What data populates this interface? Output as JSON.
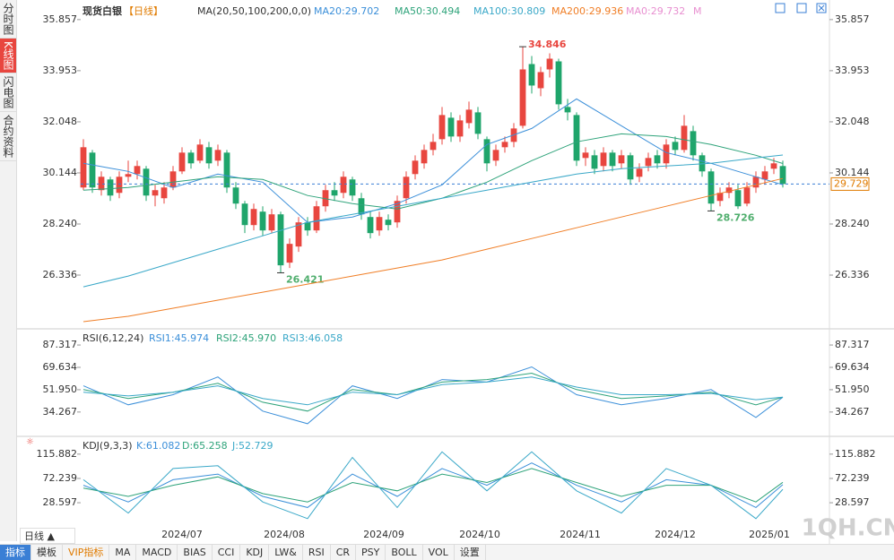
{
  "sidebar": [
    "分时图",
    "K线图",
    "闪电图",
    "合约资料"
  ],
  "toolbar": [
    "指标",
    "模板",
    "VIP指标",
    "MA",
    "MACD",
    "BIAS",
    "CCI",
    "KDJ",
    "LW&",
    "RSI",
    "CR",
    "PSY",
    "BOLL",
    "VOL",
    "设置"
  ],
  "period_button": "日线 ▲",
  "watermark": "1QH.CN",
  "chart_data": [
    {
      "type": "candlestick",
      "title": "现货白银",
      "period": "【日线】",
      "indicator": "MA(20,50,100,200,0,0)",
      "extra_labels": [
        "MA0:29.732",
        "M"
      ],
      "up_color": "#e8463f",
      "down_color": "#1fa56b",
      "ohlc": [
        [
          29.6,
          31.4,
          29.5,
          31.1
        ],
        [
          30.9,
          31.0,
          29.4,
          29.6
        ],
        [
          29.5,
          30.2,
          29.3,
          30.0
        ],
        [
          29.9,
          30.0,
          29.1,
          29.3
        ],
        [
          29.4,
          30.2,
          29.2,
          30.0
        ],
        [
          30.0,
          30.6,
          29.8,
          30.1
        ],
        [
          30.1,
          30.6,
          29.9,
          30.4
        ],
        [
          30.3,
          30.4,
          29.1,
          29.3
        ],
        [
          29.3,
          29.7,
          28.9,
          29.5
        ],
        [
          29.2,
          29.8,
          29.0,
          29.6
        ],
        [
          29.6,
          30.4,
          29.5,
          30.2
        ],
        [
          30.2,
          31.1,
          30.1,
          30.9
        ],
        [
          30.9,
          31.0,
          30.3,
          30.5
        ],
        [
          30.6,
          31.4,
          30.5,
          31.2
        ],
        [
          31.1,
          31.3,
          30.3,
          30.5
        ],
        [
          30.6,
          31.2,
          30.4,
          31.0
        ],
        [
          30.9,
          31.0,
          29.4,
          29.6
        ],
        [
          29.6,
          29.8,
          28.8,
          29.0
        ],
        [
          29.0,
          29.1,
          27.9,
          28.2
        ],
        [
          28.2,
          29.0,
          28.0,
          28.8
        ],
        [
          28.7,
          28.9,
          27.8,
          28.0
        ],
        [
          28.0,
          28.8,
          27.9,
          28.6
        ],
        [
          28.6,
          28.7,
          26.421,
          26.7
        ],
        [
          26.8,
          27.7,
          26.6,
          27.5
        ],
        [
          27.4,
          28.5,
          27.2,
          28.3
        ],
        [
          28.3,
          28.5,
          27.8,
          28.0
        ],
        [
          28.0,
          29.1,
          27.9,
          28.9
        ],
        [
          28.9,
          29.7,
          28.7,
          29.5
        ],
        [
          29.5,
          29.8,
          29.1,
          29.3
        ],
        [
          29.4,
          30.2,
          29.2,
          30.0
        ],
        [
          29.9,
          30.0,
          29.1,
          29.3
        ],
        [
          29.2,
          29.4,
          28.4,
          28.6
        ],
        [
          28.5,
          28.7,
          27.7,
          27.9
        ],
        [
          28.0,
          28.7,
          27.8,
          28.5
        ],
        [
          28.4,
          28.6,
          28.0,
          28.2
        ],
        [
          28.3,
          29.3,
          28.1,
          29.1
        ],
        [
          29.2,
          30.2,
          29.0,
          30.0
        ],
        [
          30.1,
          30.8,
          29.9,
          30.6
        ],
        [
          30.5,
          31.2,
          30.3,
          31.0
        ],
        [
          31.0,
          31.6,
          30.8,
          31.3
        ],
        [
          31.4,
          32.6,
          31.2,
          32.3
        ],
        [
          32.2,
          32.4,
          31.3,
          31.5
        ],
        [
          31.5,
          32.3,
          31.3,
          32.1
        ],
        [
          32.0,
          32.8,
          31.8,
          32.5
        ],
        [
          32.4,
          32.6,
          31.4,
          31.6
        ],
        [
          31.4,
          31.5,
          30.2,
          30.5
        ],
        [
          30.6,
          31.2,
          30.4,
          31.0
        ],
        [
          31.1,
          31.5,
          30.9,
          31.3
        ],
        [
          31.3,
          32.0,
          31.1,
          31.8
        ],
        [
          31.9,
          34.846,
          31.8,
          34.0
        ],
        [
          34.2,
          34.5,
          33.1,
          33.4
        ],
        [
          33.3,
          34.1,
          33.0,
          33.9
        ],
        [
          34.0,
          34.6,
          33.7,
          34.4
        ],
        [
          34.3,
          34.4,
          32.5,
          32.7
        ],
        [
          32.6,
          32.9,
          32.1,
          32.4
        ],
        [
          32.3,
          32.4,
          30.4,
          30.6
        ],
        [
          30.7,
          31.1,
          30.4,
          30.9
        ],
        [
          30.8,
          31.0,
          30.1,
          30.3
        ],
        [
          30.4,
          31.1,
          30.2,
          30.9
        ],
        [
          30.9,
          31.0,
          30.2,
          30.4
        ],
        [
          30.5,
          31.0,
          30.3,
          30.8
        ],
        [
          30.8,
          30.9,
          29.7,
          29.9
        ],
        [
          30.0,
          30.5,
          29.8,
          30.3
        ],
        [
          30.4,
          30.9,
          30.2,
          30.7
        ],
        [
          30.8,
          31.0,
          30.3,
          30.5
        ],
        [
          30.5,
          31.4,
          30.3,
          31.2
        ],
        [
          31.3,
          31.5,
          30.8,
          31.0
        ],
        [
          31.0,
          32.3,
          30.9,
          31.9
        ],
        [
          31.7,
          31.9,
          30.6,
          30.8
        ],
        [
          30.8,
          30.9,
          30.0,
          30.2
        ],
        [
          30.2,
          30.3,
          28.726,
          29.0
        ],
        [
          29.1,
          29.6,
          28.9,
          29.4
        ],
        [
          29.4,
          29.8,
          29.2,
          29.6
        ],
        [
          29.5,
          29.7,
          28.8,
          28.9
        ],
        [
          29.0,
          29.8,
          28.9,
          29.6
        ],
        [
          29.6,
          30.2,
          29.4,
          30.0
        ],
        [
          29.9,
          30.4,
          29.7,
          30.2
        ],
        [
          30.3,
          30.7,
          30.1,
          30.5
        ],
        [
          30.4,
          30.6,
          29.6,
          29.73
        ]
      ],
      "line_x": [
        0,
        5,
        10,
        15,
        20,
        25,
        30,
        35,
        40,
        45,
        50,
        55,
        60,
        65,
        70,
        75,
        78
      ],
      "series": [
        {
          "name": "MA20",
          "label": "MA20:29.702",
          "color": "#3b8fd9",
          "values": [
            30.5,
            30.2,
            29.6,
            30.1,
            29.8,
            28.3,
            28.5,
            29.0,
            29.7,
            31.2,
            31.8,
            32.9,
            31.9,
            30.9,
            30.5,
            30.0,
            29.702
          ]
        },
        {
          "name": "MA50",
          "label": "MA50:30.494",
          "color": "#2ea37a",
          "values": [
            29.5,
            29.6,
            29.8,
            30.0,
            29.9,
            29.3,
            29.0,
            28.8,
            29.2,
            29.8,
            30.6,
            31.3,
            31.6,
            31.5,
            31.2,
            30.8,
            30.494
          ]
        },
        {
          "name": "MA100",
          "label": "MA100:30.809",
          "color": "#3aa8c8",
          "values": [
            25.9,
            26.3,
            26.8,
            27.3,
            27.8,
            28.3,
            28.6,
            28.9,
            29.2,
            29.5,
            29.8,
            30.1,
            30.3,
            30.4,
            30.5,
            30.7,
            30.809
          ]
        },
        {
          "name": "MA200",
          "label": "MA200:29.936",
          "color": "#f07e26",
          "values": [
            24.6,
            24.8,
            25.1,
            25.4,
            25.7,
            26.0,
            26.3,
            26.6,
            26.9,
            27.3,
            27.7,
            28.1,
            28.5,
            28.9,
            29.3,
            29.7,
            29.936
          ]
        }
      ],
      "last_price": 29.729,
      "annotations": [
        {
          "value": 34.846,
          "at": 49,
          "color": "#e8463f"
        },
        {
          "value": 26.421,
          "at": 22,
          "color": "#4fae6d"
        },
        {
          "value": 28.726,
          "at": 70,
          "color": "#4fae6d"
        }
      ],
      "ylim": [
        24.4,
        36.42
      ],
      "yticks": [
        26.336,
        {
          "value": 28.24,
          "label": "28.240"
        },
        30.144,
        32.048,
        33.953,
        35.857
      ],
      "xlim": [
        0,
        78
      ],
      "xticks": [
        {
          "value": 11,
          "label": "2024/07"
        },
        {
          "value": 22.4,
          "label": "2024/08"
        },
        {
          "value": 33.5,
          "label": "2024/09"
        },
        {
          "value": 44.2,
          "label": "2024/10"
        },
        {
          "value": 55.4,
          "label": "2024/11"
        },
        {
          "value": 66,
          "label": "2024/12"
        },
        {
          "value": 76.5,
          "label": "2025/01"
        }
      ]
    },
    {
      "type": "line",
      "title": "RSI(6,12,24)",
      "line_x": [
        0,
        5,
        10,
        15,
        20,
        25,
        30,
        35,
        40,
        45,
        50,
        55,
        60,
        65,
        70,
        75,
        78
      ],
      "series": [
        {
          "name": "RSI1",
          "label": "RSI1:45.974",
          "color": "#3b8fd9",
          "values": [
            55,
            40,
            48,
            62,
            35,
            25,
            55,
            45,
            60,
            58,
            70,
            48,
            40,
            45,
            52,
            30,
            45.974
          ]
        },
        {
          "name": "RSI2",
          "label": "RSI2:45.970",
          "color": "#2ea37a",
          "values": [
            52,
            45,
            50,
            57,
            42,
            35,
            52,
            48,
            58,
            60,
            65,
            52,
            45,
            47,
            50,
            40,
            45.97
          ]
        },
        {
          "name": "RSI3",
          "label": "RSI3:46.058",
          "color": "#3aa8c8",
          "values": [
            50,
            47,
            50,
            55,
            45,
            40,
            50,
            48,
            56,
            58,
            62,
            54,
            48,
            48,
            49,
            44,
            46.058
          ]
        }
      ],
      "ylim": [
        15,
        98
      ],
      "yticks": [
        34.267,
        {
          "value": 51.95,
          "label": "51.950"
        },
        69.634,
        87.317
      ]
    },
    {
      "type": "line",
      "title": "KDJ(9,3,3)",
      "line_x": [
        0,
        5,
        10,
        15,
        20,
        25,
        30,
        35,
        40,
        45,
        50,
        55,
        60,
        65,
        70,
        75,
        78
      ],
      "series": [
        {
          "name": "K",
          "label": "K:61.082",
          "color": "#3b8fd9",
          "values": [
            60,
            30,
            70,
            80,
            40,
            20,
            80,
            40,
            90,
            60,
            100,
            60,
            30,
            70,
            60,
            20,
            61.082
          ]
        },
        {
          "name": "D",
          "label": "D:65.258",
          "color": "#2ea37a",
          "values": [
            55,
            40,
            60,
            75,
            45,
            30,
            65,
            50,
            80,
            65,
            90,
            65,
            40,
            60,
            60,
            30,
            65.258
          ]
        },
        {
          "name": "J",
          "label": "J:52.729",
          "color": "#3aa8c8",
          "values": [
            70,
            10,
            90,
            95,
            30,
            0,
            110,
            20,
            120,
            50,
            120,
            50,
            10,
            90,
            60,
            0,
            52.729
          ]
        }
      ],
      "ylim": [
        -26,
        143
      ],
      "yticks": [
        28.597,
        72.239,
        115.882
      ]
    }
  ]
}
